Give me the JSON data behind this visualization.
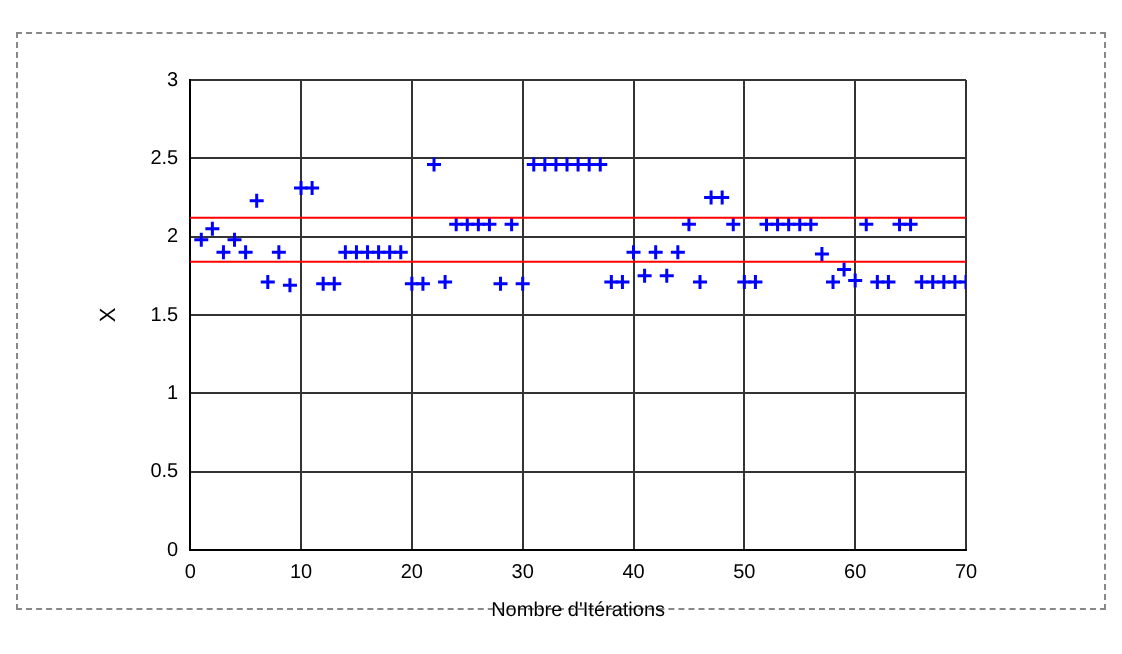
{
  "chart_data": {
    "type": "scatter",
    "xlabel": "Nombre d'Itérations",
    "ylabel": "X",
    "x": [
      1,
      2,
      3,
      4,
      5,
      6,
      7,
      8,
      9,
      10,
      11,
      12,
      13,
      14,
      15,
      16,
      17,
      18,
      19,
      20,
      21,
      22,
      23,
      24,
      25,
      26,
      27,
      28,
      29,
      30,
      31,
      32,
      33,
      34,
      35,
      36,
      37,
      38,
      39,
      40,
      41,
      42,
      43,
      44,
      45,
      46,
      47,
      48,
      49,
      50,
      51,
      52,
      53,
      54,
      55,
      56,
      57,
      58,
      59,
      60,
      61,
      62,
      63,
      64,
      65,
      66,
      67,
      68,
      69,
      70
    ],
    "series": [
      {
        "color": "#0000ff",
        "values": [
          1.98,
          2.05,
          1.9,
          1.98,
          1.9,
          2.23,
          1.71,
          1.9,
          1.69,
          2.31,
          2.31,
          1.7,
          1.7,
          1.9,
          1.9,
          1.9,
          1.9,
          1.9,
          1.9,
          1.7,
          1.7,
          2.46,
          1.71,
          2.08,
          2.08,
          2.08,
          2.08,
          1.7,
          2.08,
          1.7,
          2.46,
          2.46,
          2.46,
          2.46,
          2.46,
          2.46,
          2.46,
          1.71,
          1.71,
          1.9,
          1.75,
          1.9,
          1.75,
          1.9,
          2.08,
          1.71,
          2.25,
          2.25,
          2.08,
          1.71,
          1.71,
          2.08,
          2.08,
          2.08,
          2.08,
          2.08,
          1.89,
          1.71,
          1.79,
          1.72,
          2.08,
          1.71,
          1.71,
          2.08,
          2.08,
          1.71,
          1.71,
          1.71,
          1.71,
          1.71
        ]
      }
    ],
    "xlim": [
      0,
      70
    ],
    "xticks": [
      0,
      10,
      20,
      30,
      40,
      50,
      60,
      70
    ],
    "ylim": [
      0,
      3
    ],
    "yticks": [
      0,
      0.5,
      1,
      1.5,
      2,
      2.5,
      3
    ],
    "ref_lines": [
      {
        "axis": "y",
        "value": 2.12,
        "color": "#ff0000"
      },
      {
        "axis": "y",
        "value": 1.84,
        "color": "#ff0000"
      }
    ],
    "grid": true,
    "marker": "cross"
  }
}
